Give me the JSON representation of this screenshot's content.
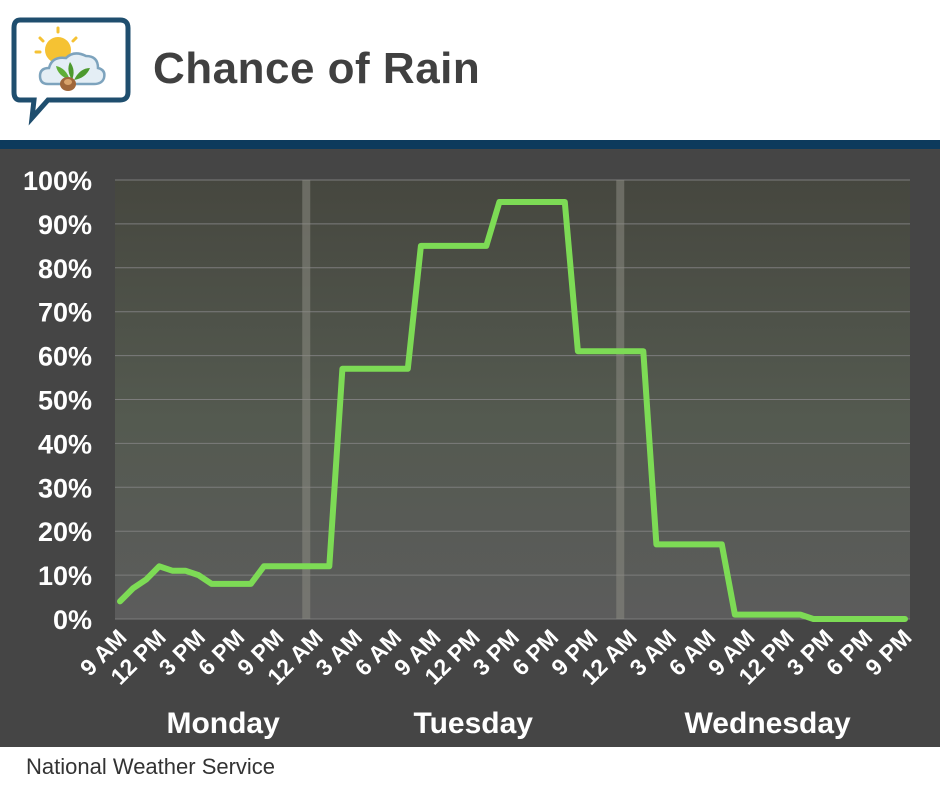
{
  "header": {
    "title": "Chance of Rain"
  },
  "footer": {
    "source": "National Weather Service"
  },
  "colors": {
    "line": "#7ddb55",
    "rule": "#0d3a5c",
    "panel": "#454545"
  },
  "chart_data": {
    "type": "line",
    "title": "Chance of Rain",
    "xlabel": "",
    "ylabel": "",
    "ylim": [
      0,
      100
    ],
    "yticks": [
      "0%",
      "10%",
      "20%",
      "30%",
      "40%",
      "50%",
      "60%",
      "70%",
      "80%",
      "90%",
      "100%"
    ],
    "xticks": [
      "9 AM",
      "12 PM",
      "3 PM",
      "6 PM",
      "9 PM",
      "12 AM",
      "3 AM",
      "6 AM",
      "9 AM",
      "12 PM",
      "3 PM",
      "6 PM",
      "9 PM",
      "12 AM",
      "3 AM",
      "6 AM",
      "9 AM",
      "12 PM",
      "3 PM",
      "6 PM",
      "9 PM"
    ],
    "day_labels": [
      "Monday",
      "Tuesday",
      "Wednesday"
    ],
    "grid": true,
    "series": [
      {
        "values": [
          4,
          7,
          9,
          12,
          11,
          11,
          10,
          8,
          8,
          8,
          8,
          12,
          12,
          12,
          12,
          12,
          12,
          57,
          57,
          57,
          57,
          57,
          57,
          85,
          85,
          85,
          85,
          85,
          85,
          95,
          95,
          95,
          95,
          95,
          95,
          61,
          61,
          61,
          61,
          61,
          61,
          17,
          17,
          17,
          17,
          17,
          17,
          1,
          1,
          1,
          1,
          1,
          1,
          0,
          0,
          0,
          0,
          0,
          0,
          0,
          0
        ]
      }
    ]
  }
}
